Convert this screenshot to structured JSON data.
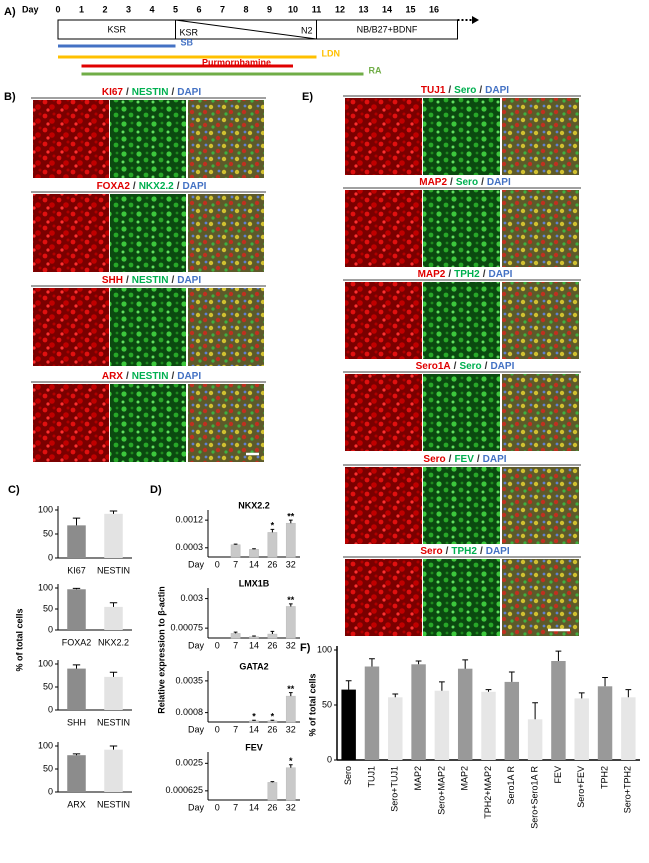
{
  "panel_a": {
    "label": "A)",
    "day_label": "Day",
    "days": [
      0,
      1,
      2,
      3,
      4,
      5,
      6,
      7,
      8,
      9,
      10,
      11,
      12,
      13,
      14,
      15,
      16
    ],
    "stages": [
      {
        "name": "KSR",
        "start": 0,
        "end": 5
      },
      {
        "name": "KSR",
        "start": 5,
        "end": 11
      },
      {
        "name": "NB/B27+BDNF",
        "start": 11,
        "end": 17
      }
    ],
    "transition": "N2",
    "treatments": [
      {
        "name": "SB",
        "color": "#4472c4",
        "start": 0,
        "end": 5
      },
      {
        "name": "LDN",
        "color": "#ffc000",
        "start": 0,
        "end": 11
      },
      {
        "name": "Purmorphamine",
        "color": "#e00000",
        "start": 1,
        "end": 10
      },
      {
        "name": "RA",
        "color": "#70ad47",
        "start": 1,
        "end": 13
      }
    ]
  },
  "panel_b": {
    "label": "B)",
    "separator": "/",
    "stain_colors": [
      "#e00000",
      "#00b050",
      "#4472c4"
    ],
    "rows": [
      {
        "stains": [
          "KI67",
          "NESTIN",
          "DAPI"
        ]
      },
      {
        "stains": [
          "FOXA2",
          "NKX2.2",
          "DAPI"
        ]
      },
      {
        "stains": [
          "SHH",
          "NESTIN",
          "DAPI"
        ]
      },
      {
        "stains": [
          "ARX",
          "NESTIN",
          "DAPI"
        ]
      }
    ]
  },
  "panel_e": {
    "label": "E)",
    "separator": "/",
    "stain_colors": [
      "#e00000",
      "#00b050",
      "#4472c4"
    ],
    "rows": [
      {
        "stains": [
          "TUJ1",
          "Sero",
          "DAPI"
        ]
      },
      {
        "stains": [
          "MAP2",
          "Sero",
          "DAPI"
        ]
      },
      {
        "stains": [
          "MAP2",
          "TPH2",
          "DAPI"
        ]
      },
      {
        "stains": [
          "Sero1A",
          "Sero",
          "DAPI"
        ]
      },
      {
        "stains": [
          "Sero",
          "FEV",
          "DAPI"
        ]
      },
      {
        "stains": [
          "Sero",
          "TPH2",
          "DAPI"
        ]
      }
    ]
  },
  "panel_c": {
    "label": "C)",
    "y_label": "% of total cells"
  },
  "panel_d": {
    "label": "D)",
    "y_label": "Relative expression to β-actin"
  },
  "panel_f": {
    "label": "F)"
  },
  "chart_data": [
    {
      "type": "bar",
      "categories": [
        "KI67",
        "NESTIN"
      ],
      "values": [
        68,
        92
      ],
      "errors": [
        15,
        6
      ],
      "colors": [
        "#8c8c8c",
        "#e3e3e3"
      ],
      "ylim": [
        0,
        100
      ],
      "yticks": [
        0,
        50,
        100
      ]
    },
    {
      "type": "bar",
      "categories": [
        "FOXA2",
        "NKX2.2"
      ],
      "values": [
        97,
        55
      ],
      "errors": [
        2,
        10
      ],
      "colors": [
        "#8c8c8c",
        "#e3e3e3"
      ],
      "ylim": [
        0,
        100
      ],
      "yticks": [
        0,
        50,
        100
      ]
    },
    {
      "type": "bar",
      "categories": [
        "SHH",
        "NESTIN"
      ],
      "values": [
        90,
        72
      ],
      "errors": [
        8,
        10
      ],
      "colors": [
        "#8c8c8c",
        "#e3e3e3"
      ],
      "ylim": [
        0,
        100
      ],
      "yticks": [
        0,
        50,
        100
      ]
    },
    {
      "type": "bar",
      "categories": [
        "ARX",
        "NESTIN"
      ],
      "values": [
        80,
        92
      ],
      "errors": [
        3,
        8
      ],
      "colors": [
        "#8c8c8c",
        "#e3e3e3"
      ],
      "ylim": [
        0,
        100
      ],
      "yticks": [
        0,
        50,
        100
      ]
    },
    {
      "type": "bar",
      "title": "NKX2.2",
      "x_label": "Day",
      "categories": [
        "0",
        "7",
        "14",
        "26",
        "32"
      ],
      "values": [
        0,
        0.0004,
        0.00025,
        0.0008,
        0.0011
      ],
      "errors": [
        0,
        2e-05,
        2e-05,
        0.0001,
        0.0001
      ],
      "sig": [
        null,
        null,
        null,
        "*",
        "**"
      ],
      "colors": [
        "#c9c9c9",
        "#c9c9c9",
        "#c9c9c9",
        "#c9c9c9",
        "#c9c9c9"
      ],
      "ylim": [
        0,
        0.0014
      ],
      "yticks": [
        0.0003,
        0.0012
      ]
    },
    {
      "type": "bar",
      "title": "LMX1B",
      "x_label": "Day",
      "categories": [
        "0",
        "7",
        "14",
        "26",
        "32"
      ],
      "values": [
        0,
        0.00035,
        0.0001,
        0.0003,
        0.0024
      ],
      "errors": [
        0,
        0.0001,
        5e-05,
        0.0002,
        0.0002
      ],
      "sig": [
        null,
        null,
        null,
        null,
        "**"
      ],
      "colors": [
        "#c9c9c9",
        "#c9c9c9",
        "#c9c9c9",
        "#c9c9c9",
        "#c9c9c9"
      ],
      "ylim": [
        0,
        0.0035
      ],
      "yticks": [
        0.00075,
        0.003
      ]
    },
    {
      "type": "bar",
      "title": "GATA2",
      "x_label": "Day",
      "categories": [
        "0",
        "7",
        "14",
        "26",
        "32"
      ],
      "values": [
        0,
        0,
        0.0001,
        0.0001,
        0.0022
      ],
      "errors": [
        0,
        0,
        5e-05,
        5e-05,
        0.0003
      ],
      "sig": [
        null,
        null,
        "*",
        "*",
        "**"
      ],
      "colors": [
        "#c9c9c9",
        "#c9c9c9",
        "#c9c9c9",
        "#c9c9c9",
        "#c9c9c9"
      ],
      "ylim": [
        0,
        0.004
      ],
      "yticks": [
        0.0008,
        0.0035
      ]
    },
    {
      "type": "bar",
      "title": "FEV",
      "x_label": "Day",
      "categories": [
        "0",
        "7",
        "14",
        "26",
        "32"
      ],
      "values": [
        0,
        0,
        0,
        0.0012,
        0.0022
      ],
      "errors": [
        0,
        0,
        0,
        5e-05,
        0.0002
      ],
      "sig": [
        null,
        null,
        null,
        null,
        "*"
      ],
      "colors": [
        "#c9c9c9",
        "#c9c9c9",
        "#c9c9c9",
        "#c9c9c9",
        "#c9c9c9"
      ],
      "ylim": [
        0,
        0.003
      ],
      "yticks": [
        0.000625,
        0.0025
      ]
    },
    {
      "type": "bar",
      "y_label": "% of total cells",
      "categories": [
        "Sero",
        "TUJ1",
        "Sero+TUJ1",
        "MAP2",
        "Sero+MAP2",
        "MAP2",
        "TPH2+MAP2",
        "Sero1A R",
        "Sero+Sero1A R",
        "FEV",
        "Sero+FEV",
        "TPH2",
        "Sero+TPH2"
      ],
      "values": [
        64,
        85,
        57,
        87,
        63,
        83,
        62,
        71,
        37,
        90,
        56,
        67,
        57
      ],
      "errors": [
        8,
        7,
        3,
        3,
        8,
        8,
        2,
        9,
        15,
        9,
        5,
        8,
        7
      ],
      "colors": [
        "#000000",
        "#999999",
        "#e6e6e6",
        "#999999",
        "#e6e6e6",
        "#999999",
        "#e6e6e6",
        "#999999",
        "#e6e6e6",
        "#999999",
        "#e6e6e6",
        "#999999",
        "#e6e6e6"
      ],
      "ylim": [
        0,
        100
      ],
      "yticks": [
        0,
        50,
        100
      ]
    }
  ]
}
